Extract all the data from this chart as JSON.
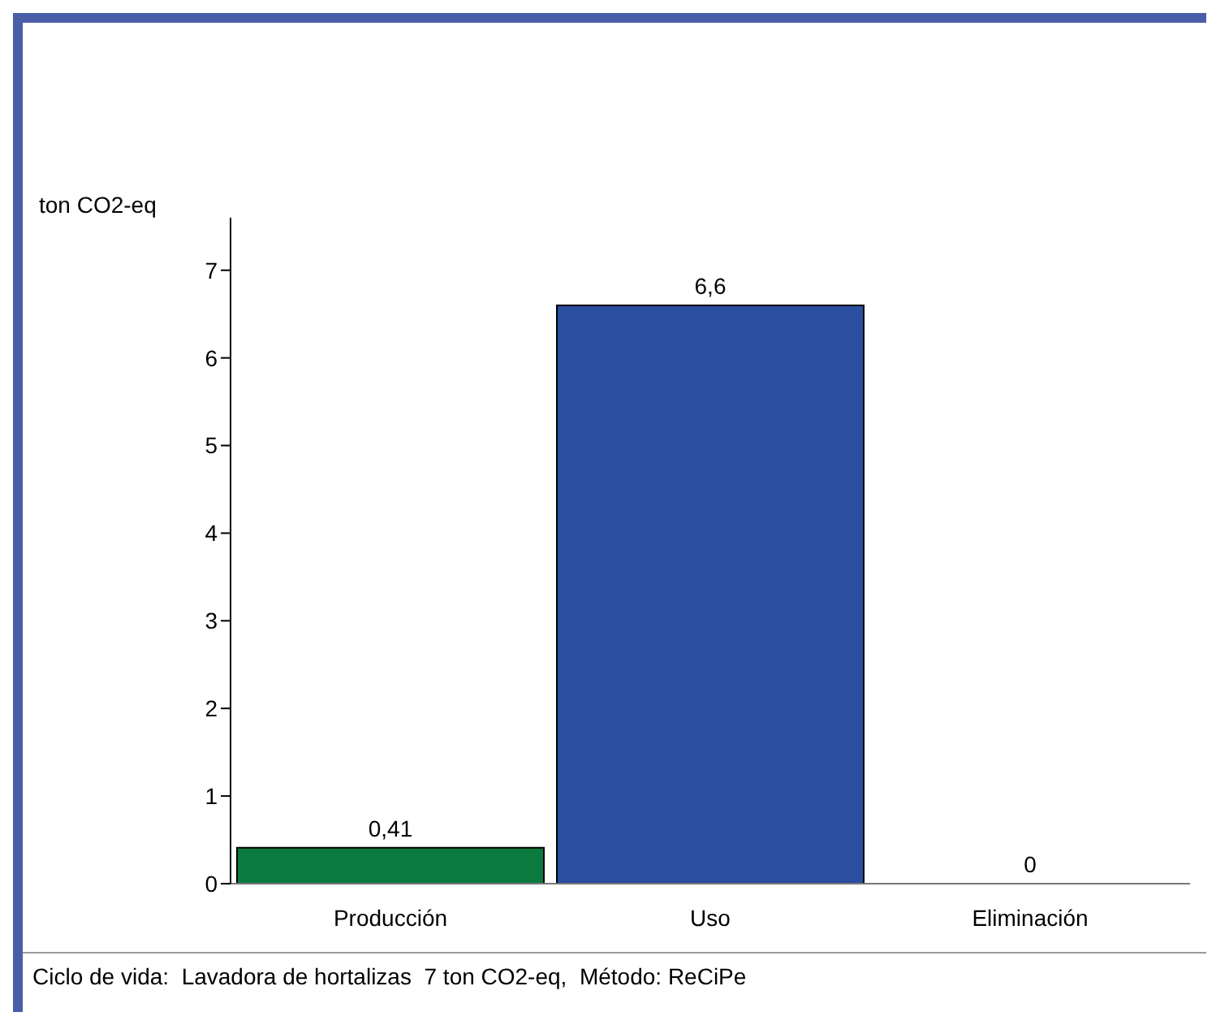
{
  "chart_data": {
    "type": "bar",
    "ylabel": "ton CO2-eq",
    "categories": [
      "Producción",
      "Uso",
      "Eliminación"
    ],
    "values": [
      0.41,
      6.6,
      0
    ],
    "colors": [
      "#0b7a3e",
      "#2a4ea0",
      "#2a4ea0"
    ],
    "value_labels": [
      "0,41",
      "6,6",
      "0"
    ],
    "ylim": [
      0,
      7.6
    ],
    "yticks": [
      0,
      1,
      2,
      3,
      4,
      5,
      6,
      7
    ],
    "grid": false,
    "legend": false,
    "annotations": [
      "Ciclo de vida:  Lavadora de hortalizas  7 ton CO2-eq,  Método: ReCiPe"
    ]
  }
}
